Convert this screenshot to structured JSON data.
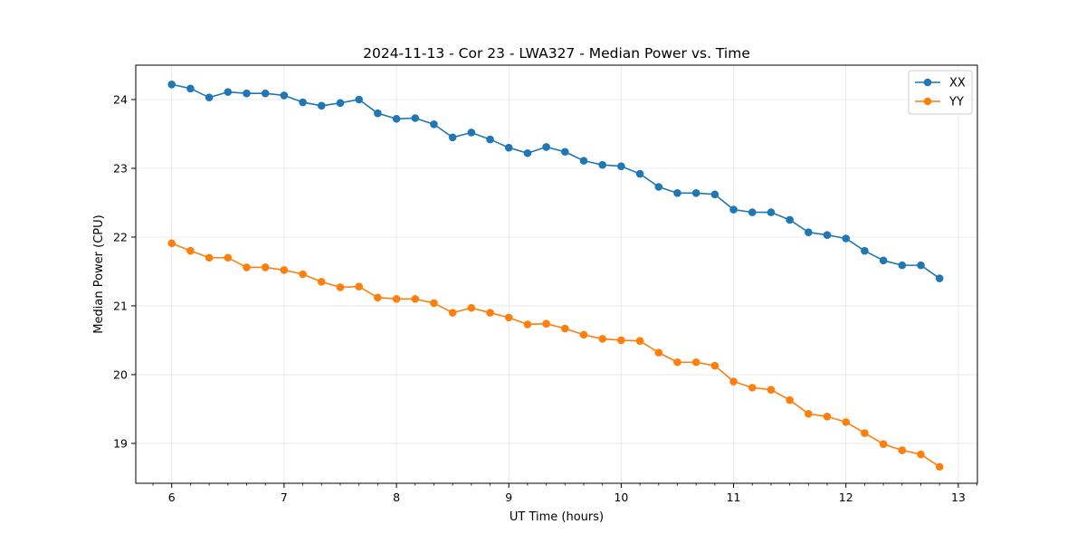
{
  "chart_data": {
    "type": "line",
    "title": "2024-11-13 - Cor 23 - LWA327 - Median Power vs. Time",
    "xlabel": "UT Time (hours)",
    "ylabel": "Median Power (CPU)",
    "xlim": [
      5.68,
      13.17
    ],
    "ylim": [
      18.42,
      24.5
    ],
    "xticks": [
      6,
      7,
      8,
      9,
      10,
      11,
      12,
      13
    ],
    "xtick_labels": [
      "6",
      "7",
      "8",
      "9",
      "10",
      "11",
      "12",
      "13"
    ],
    "yticks": [
      19,
      20,
      21,
      22,
      23,
      24
    ],
    "ytick_labels": [
      "19",
      "20",
      "21",
      "22",
      "23",
      "24"
    ],
    "grid": true,
    "legend_position": "top-right",
    "x": [
      6.0,
      6.1667,
      6.3333,
      6.5,
      6.6667,
      6.8333,
      7.0,
      7.1667,
      7.3333,
      7.5,
      7.6667,
      7.8333,
      8.0,
      8.1667,
      8.3333,
      8.5,
      8.6667,
      8.8333,
      9.0,
      9.1667,
      9.3333,
      9.5,
      9.6667,
      9.8333,
      10.0,
      10.1667,
      10.3333,
      10.5,
      10.6667,
      10.8333,
      11.0,
      11.1667,
      11.3333,
      11.5,
      11.6667,
      11.8333,
      12.0,
      12.1667,
      12.3333,
      12.5,
      12.6667,
      12.8333
    ],
    "series": [
      {
        "name": "XX",
        "color": "#1f77b4",
        "values": [
          24.22,
          24.16,
          24.03,
          24.11,
          24.09,
          24.09,
          24.06,
          23.96,
          23.91,
          23.95,
          24.0,
          23.8,
          23.72,
          23.73,
          23.64,
          23.45,
          23.52,
          23.42,
          23.3,
          23.22,
          23.31,
          23.24,
          23.11,
          23.05,
          23.03,
          22.92,
          22.73,
          22.64,
          22.64,
          22.62,
          22.4,
          22.36,
          22.36,
          22.25,
          22.07,
          22.03,
          21.98,
          21.8,
          21.66,
          21.59,
          21.59,
          21.4
        ]
      },
      {
        "name": "YY",
        "color": "#ff7f0e",
        "values": [
          21.91,
          21.8,
          21.7,
          21.7,
          21.56,
          21.56,
          21.52,
          21.46,
          21.35,
          21.27,
          21.28,
          21.12,
          21.1,
          21.1,
          21.04,
          20.9,
          20.97,
          20.9,
          20.83,
          20.73,
          20.74,
          20.67,
          20.58,
          20.52,
          20.5,
          20.49,
          20.32,
          20.18,
          20.18,
          20.13,
          19.9,
          19.81,
          19.78,
          19.63,
          19.43,
          19.39,
          19.31,
          19.15,
          18.99,
          18.9,
          18.84,
          18.66
        ]
      }
    ]
  }
}
